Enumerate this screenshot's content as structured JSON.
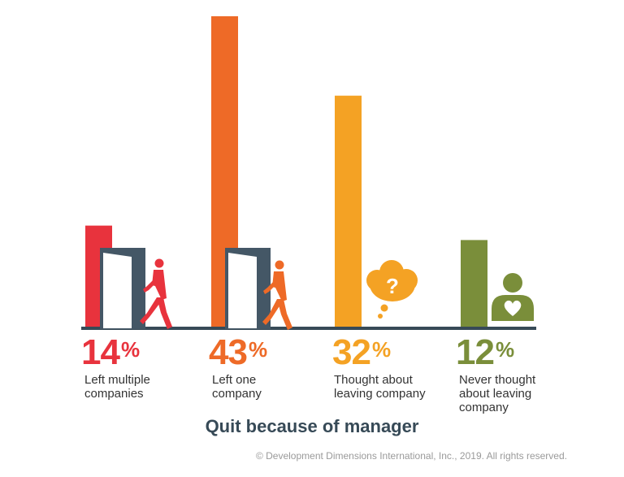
{
  "chart_data": {
    "type": "bar",
    "title": "",
    "xlabel": "Quit because of manager",
    "ylabel": "",
    "ylim": [
      0,
      43
    ],
    "grid": false,
    "categories": [
      [
        "Left multiple",
        "companies"
      ],
      [
        "Left one",
        "company"
      ],
      [
        "Thought about",
        "leaving company"
      ],
      [
        "Never thought",
        "about leaving",
        "company"
      ]
    ],
    "values": [
      14,
      43,
      32,
      12
    ],
    "value_labels": [
      "14",
      "43",
      "32",
      "12"
    ],
    "value_suffix": "%",
    "colors": [
      "#e8333d",
      "#ee6a27",
      "#f4a224",
      "#7a8e3a"
    ],
    "icons": [
      "open-door-walking-person-icon",
      "open-door-walking-person-icon",
      "thought-bubble-question-icon",
      "person-heart-icon"
    ]
  },
  "footer": {
    "copyright": "© Development Dimensions International, Inc., 2019. All rights reserved."
  }
}
